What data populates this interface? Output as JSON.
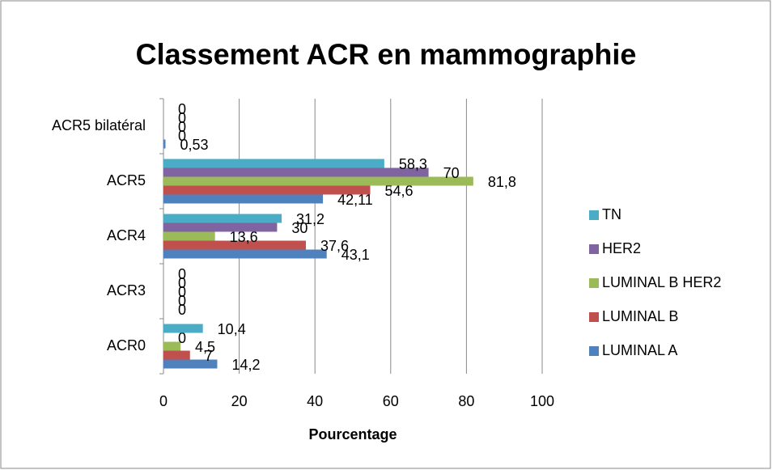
{
  "chart_data": {
    "type": "hbar",
    "title": "Classement ACR en mammographie",
    "x_label": "Pourcentage",
    "categories": [
      "ACR0",
      "ACR3",
      "ACR4",
      "ACR5",
      "ACR5 bilatéral"
    ],
    "series": [
      {
        "name": "LUMINAL A",
        "color": "#4f81bd",
        "values": [
          14.2,
          0,
          43.1,
          42.11,
          0.53
        ],
        "value_labels": [
          "14,2",
          "0",
          "43,1",
          "42,11",
          "0,53"
        ]
      },
      {
        "name": "LUMINAL B",
        "color": "#c0504d",
        "values": [
          7,
          0,
          37.6,
          54.6,
          0
        ],
        "value_labels": [
          "7",
          "0",
          "37,6",
          "54,6",
          "0"
        ]
      },
      {
        "name": "LUMINAL B HER2",
        "color": "#9bbb59",
        "values": [
          4.5,
          0,
          13.6,
          81.8,
          0
        ],
        "value_labels": [
          "4,5",
          "0",
          "13,6",
          "81,8",
          "0"
        ]
      },
      {
        "name": "HER2",
        "color": "#8064a2",
        "values": [
          0,
          0,
          30,
          70,
          0
        ],
        "value_labels": [
          "0",
          "0",
          "30",
          "70",
          "0"
        ]
      },
      {
        "name": "TN",
        "color": "#4bacc6",
        "values": [
          10.4,
          0,
          31.2,
          58.3,
          0
        ],
        "value_labels": [
          "10,4",
          "0",
          "31,2",
          "58,3",
          "0"
        ]
      }
    ],
    "xlim": [
      0,
      100
    ],
    "xticks": [
      0,
      20,
      40,
      60,
      80,
      100
    ],
    "grid": true,
    "legend": "right"
  }
}
